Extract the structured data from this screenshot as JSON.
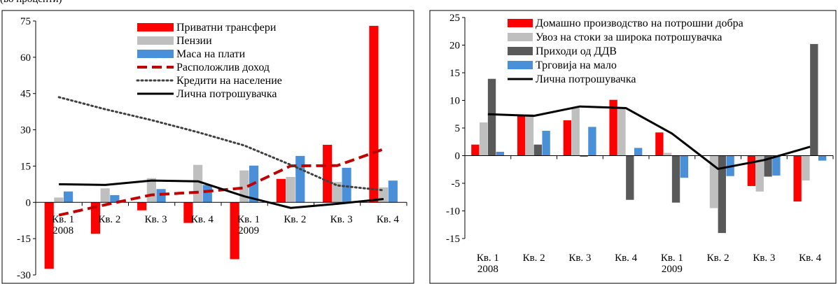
{
  "header": {
    "note": "(во проценти)"
  },
  "chart_data": [
    {
      "type": "bar",
      "categories": [
        [
          "Кв. 1",
          "2008"
        ],
        [
          "Кв. 2"
        ],
        [
          "Кв. 3"
        ],
        [
          "Кв. 4"
        ],
        [
          "Кв. 1",
          "2009"
        ],
        [
          "Кв. 2"
        ],
        [
          "Кв. 3"
        ],
        [
          "Кв. 4"
        ]
      ],
      "ylim": [
        -30,
        75
      ],
      "yticks": [
        -30,
        -15,
        0,
        15,
        30,
        45,
        60,
        75
      ],
      "grid": false,
      "legend_position": "top-right",
      "series": [
        {
          "name": "Приватни трансфери",
          "kind": "bar",
          "color": "#ff0000",
          "values": [
            -27.5,
            -13,
            -3.3,
            -8.5,
            -23.5,
            9.7,
            23.8,
            73
          ]
        },
        {
          "name": "Пензии",
          "kind": "bar",
          "color": "#bfbfbf",
          "values": [
            2,
            5.8,
            10,
            15.5,
            13.2,
            10.5,
            8.4,
            6.2
          ]
        },
        {
          "name": "Маса на плати",
          "kind": "bar",
          "color": "#4a90d9",
          "values": [
            4.5,
            3,
            5.5,
            7.2,
            15.2,
            19.2,
            14.3,
            9
          ]
        },
        {
          "name": "Расположлив доход",
          "kind": "line",
          "color": "#c00000",
          "dash": "dash",
          "values": [
            -5.3,
            -1,
            3.1,
            4.2,
            6,
            15.1,
            15.2,
            22
          ]
        },
        {
          "name": "Кредити на население",
          "kind": "line",
          "color": "#404040",
          "dash": "dot",
          "values": [
            43.5,
            38.5,
            34,
            29,
            23.5,
            15.5,
            7,
            5
          ]
        },
        {
          "name": "Лична потрошувачка",
          "kind": "line",
          "color": "#000000",
          "dash": "solid",
          "values": [
            7.5,
            7.2,
            9,
            8.7,
            2.5,
            -2.3,
            -0.6,
            1.4
          ]
        }
      ]
    },
    {
      "type": "bar",
      "categories": [
        [
          "Кв. 1",
          "2008"
        ],
        [
          "Кв. 2"
        ],
        [
          "Кв. 3"
        ],
        [
          "Кв. 4"
        ],
        [
          "Кв. 1",
          "2009"
        ],
        [
          "Кв. 2"
        ],
        [
          "Кв. 3"
        ],
        [
          "Кв. 4"
        ]
      ],
      "ylim": [
        -15,
        25
      ],
      "yticks": [
        -15,
        -10,
        -5,
        0,
        5,
        10,
        15,
        20,
        25
      ],
      "grid": false,
      "legend_position": "top-right",
      "series": [
        {
          "name": "Домашно производство на потрошни добра",
          "kind": "bar",
          "color": "#ff0000",
          "values": [
            2,
            7.3,
            6.4,
            10.1,
            4.2,
            0,
            -5.5,
            -8.3
          ]
        },
        {
          "name": "Увоз на  стоки за широка потрошувачка",
          "kind": "bar",
          "color": "#bfbfbf",
          "values": [
            6,
            7.5,
            8.7,
            8.5,
            0.5,
            -9.5,
            -6.5,
            -4.5
          ]
        },
        {
          "name": "Приходи од ДДВ",
          "kind": "bar",
          "color": "#595959",
          "values": [
            13.9,
            2,
            -0.2,
            -8,
            -8.5,
            -14,
            -3.8,
            20.2
          ]
        },
        {
          "name": "Трговија на мало",
          "kind": "bar",
          "color": "#4a90d9",
          "values": [
            0.7,
            4.5,
            5.2,
            1.4,
            -4,
            -3.7,
            -3.6,
            -0.9
          ]
        },
        {
          "name": "Лична потрошувачка",
          "kind": "line",
          "color": "#000000",
          "dash": "solid",
          "values": [
            7.5,
            7.2,
            8.9,
            8.6,
            4,
            -2.4,
            -0.8,
            1.6
          ]
        }
      ]
    }
  ]
}
